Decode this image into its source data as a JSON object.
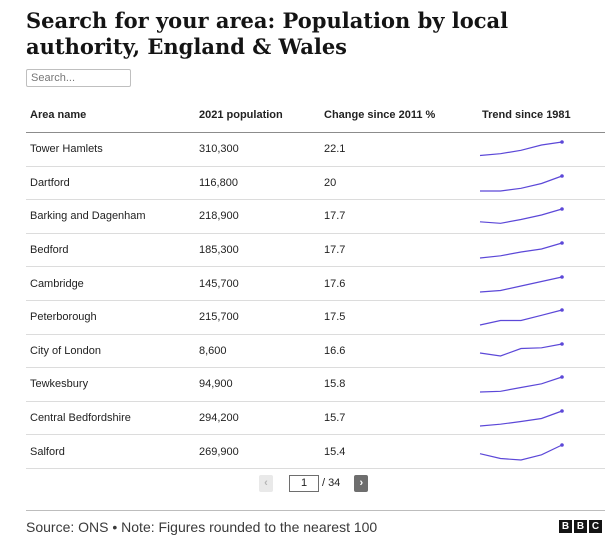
{
  "title": "Search for your area: Population by local authority, England & Wales",
  "search": {
    "placeholder": "Search..."
  },
  "table": {
    "headers": {
      "area": "Area name",
      "population": "2021 population",
      "change": "Change since 2011 %",
      "trend": "Trend since 1981"
    },
    "rows": [
      {
        "area": "Tower Hamlets",
        "population": "310,300",
        "change": "22.1",
        "trend": [
          0.1,
          0.22,
          0.45,
          0.8,
          1.0
        ]
      },
      {
        "area": "Dartford",
        "population": "116,800",
        "change": "20",
        "trend": [
          0.0,
          0.0,
          0.18,
          0.5,
          1.0
        ]
      },
      {
        "area": "Barking and Dagenham",
        "population": "218,900",
        "change": "17.7",
        "trend": [
          0.15,
          0.05,
          0.3,
          0.6,
          1.0
        ]
      },
      {
        "area": "Bedford",
        "population": "185,300",
        "change": "17.7",
        "trend": [
          0.0,
          0.15,
          0.4,
          0.6,
          1.0
        ]
      },
      {
        "area": "Cambridge",
        "population": "145,700",
        "change": "17.6",
        "trend": [
          0.0,
          0.1,
          0.4,
          0.7,
          1.0
        ]
      },
      {
        "area": "Peterborough",
        "population": "215,700",
        "change": "17.5",
        "trend": [
          0.0,
          0.3,
          0.3,
          0.65,
          1.0
        ]
      },
      {
        "area": "City of London",
        "population": "8,600",
        "change": "16.6",
        "trend": [
          0.4,
          0.2,
          0.7,
          0.75,
          1.0
        ]
      },
      {
        "area": "Tewkesbury",
        "population": "94,900",
        "change": "15.8",
        "trend": [
          0.0,
          0.05,
          0.3,
          0.55,
          1.0
        ]
      },
      {
        "area": "Central Bedfordshire",
        "population": "294,200",
        "change": "15.7",
        "trend": [
          0.0,
          0.12,
          0.3,
          0.5,
          1.0
        ]
      },
      {
        "area": "Salford",
        "population": "269,900",
        "change": "15.4",
        "trend": [
          0.42,
          0.1,
          0.0,
          0.35,
          1.0
        ]
      }
    ]
  },
  "pagination": {
    "current_page": "1",
    "separator": "/",
    "total_pages": "34",
    "prev_icon": "chevron-left-icon",
    "next_icon": "chevron-right-icon"
  },
  "footer": {
    "source": "Source: ONS • Note: Figures rounded to the nearest 100",
    "logo_letters": [
      "B",
      "B",
      "C"
    ]
  },
  "colors": {
    "sparkline": "#5c48d8",
    "text": "#141414",
    "row_border": "#dcdcdc",
    "header_border": "#8c8c8c"
  }
}
